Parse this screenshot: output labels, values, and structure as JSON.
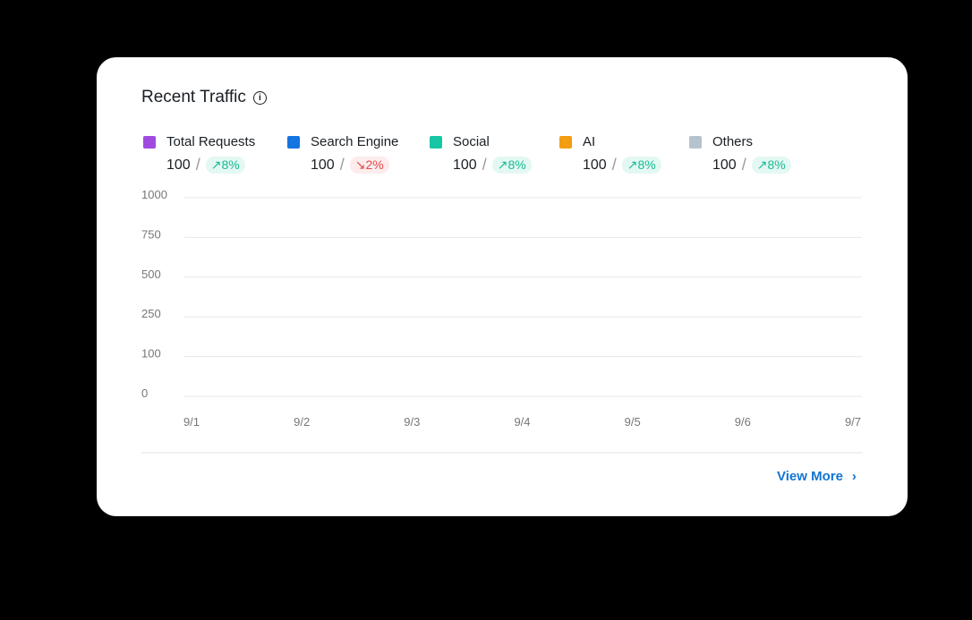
{
  "title": "Recent Traffic",
  "legend": [
    {
      "label": "Total Requests",
      "color": "#a04be0",
      "value": "100",
      "change": "8%",
      "trend": "up"
    },
    {
      "label": "Search Engine",
      "color": "#1474e0",
      "value": "100",
      "change": "2%",
      "trend": "down"
    },
    {
      "label": "Social",
      "color": "#16c6a4",
      "value": "100",
      "change": "8%",
      "trend": "up"
    },
    {
      "label": "AI",
      "color": "#f29d12",
      "value": "100",
      "change": "8%",
      "trend": "up"
    },
    {
      "label": "Others",
      "color": "#b7c3cc",
      "value": "100",
      "change": "8%",
      "trend": "up"
    }
  ],
  "view_more": "View More",
  "chart_data": {
    "type": "line",
    "x": [
      "9/1",
      "9/2",
      "9/3",
      "9/4",
      "9/5",
      "9/6",
      "9/7"
    ],
    "y_ticks": [
      "1000",
      "750",
      "500",
      "250",
      "100",
      "0"
    ],
    "series": [],
    "grid": true
  }
}
